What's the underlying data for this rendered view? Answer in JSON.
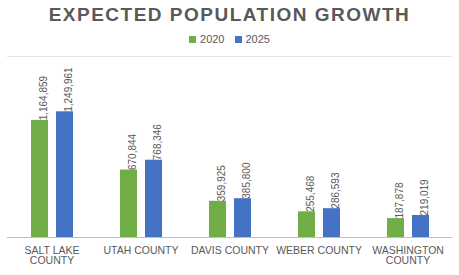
{
  "chart_data": {
    "type": "bar",
    "title": "EXPECTED POPULATION GROWTH",
    "categories": [
      "SALT LAKE COUNTY",
      "UTAH COUNTY",
      "DAVIS COUNTY",
      "WEBER COUNTY",
      "WASHINGTON COUNTY"
    ],
    "series": [
      {
        "name": "2020",
        "color": "#70ad47",
        "values": [
          1164859,
          670844,
          359925,
          255468,
          187878
        ],
        "value_labels": [
          "1,164,859",
          "670,844",
          "359,925",
          "255,468",
          "187,878"
        ]
      },
      {
        "name": "2025",
        "color": "#4472c4",
        "values": [
          1249961,
          768346,
          385800,
          286593,
          219019
        ],
        "value_labels": [
          "1,249,961",
          "768,346",
          "385,800",
          "286,593",
          "219,019"
        ]
      }
    ],
    "ylim": [
      0,
      1800000
    ],
    "yticks": [],
    "grid": false,
    "legend": "top",
    "data_labels": true,
    "tick_labels": "x"
  }
}
